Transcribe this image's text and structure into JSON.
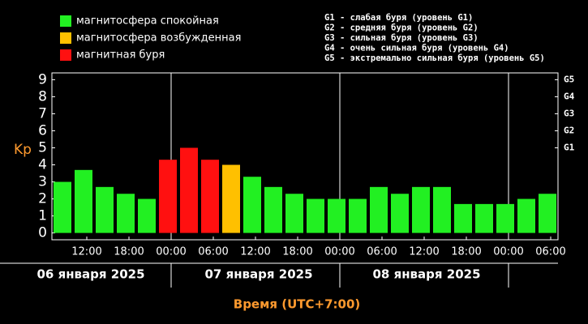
{
  "chart_data": {
    "type": "bar",
    "ylabel": "Kp",
    "xlabel": "Время (UTC+7:00)",
    "legend": [
      {
        "name": "магнитосфера спокойная",
        "color": "#22f022"
      },
      {
        "name": "магнитосфера возбужденная",
        "color": "#ffc000"
      },
      {
        "name": "магнитная буря",
        "color": "#ff1010"
      }
    ],
    "notes": [
      "G1 - слабая буря (уровень G1)",
      "G2 - средняя буря (уровень G2)",
      "G3 - сильная буря (уровень G3)",
      "G4 - очень сильная буря (уровень G4)",
      "G5 - экстремально сильная буря (уровень G5)"
    ],
    "values": [
      3.0,
      3.7,
      2.7,
      2.3,
      2.0,
      4.3,
      5.0,
      4.3,
      4.0,
      3.3,
      2.7,
      2.3,
      2.0,
      2.0,
      2.0,
      2.7,
      2.3,
      2.7,
      2.7,
      1.7,
      1.7,
      1.7,
      2.0,
      2.3
    ],
    "colors": [
      "#22f022",
      "#22f022",
      "#22f022",
      "#22f022",
      "#22f022",
      "#ff1010",
      "#ff1010",
      "#ff1010",
      "#ffc000",
      "#22f022",
      "#22f022",
      "#22f022",
      "#22f022",
      "#22f022",
      "#22f022",
      "#22f022",
      "#22f022",
      "#22f022",
      "#22f022",
      "#22f022",
      "#22f022",
      "#22f022",
      "#22f022",
      "#22f022"
    ],
    "xtick_labels": [
      "12:00",
      "18:00",
      "00:00",
      "06:00",
      "12:00",
      "18:00",
      "00:00",
      "06:00",
      "12:00",
      "18:00",
      "00:00",
      "06:00"
    ],
    "days": [
      "06 января 2025",
      "07 января 2025",
      "08 января 2025"
    ],
    "ylim": [
      -0.4,
      9.4
    ],
    "yticks": [
      0,
      1,
      2,
      3,
      4,
      5,
      6,
      7,
      8,
      9
    ],
    "y2ticks": [
      {
        "value": 5,
        "label": "G1"
      },
      {
        "value": 6,
        "label": "G2"
      },
      {
        "value": 7,
        "label": "G3"
      },
      {
        "value": 8,
        "label": "G4"
      },
      {
        "value": 9,
        "label": "G5"
      }
    ]
  }
}
